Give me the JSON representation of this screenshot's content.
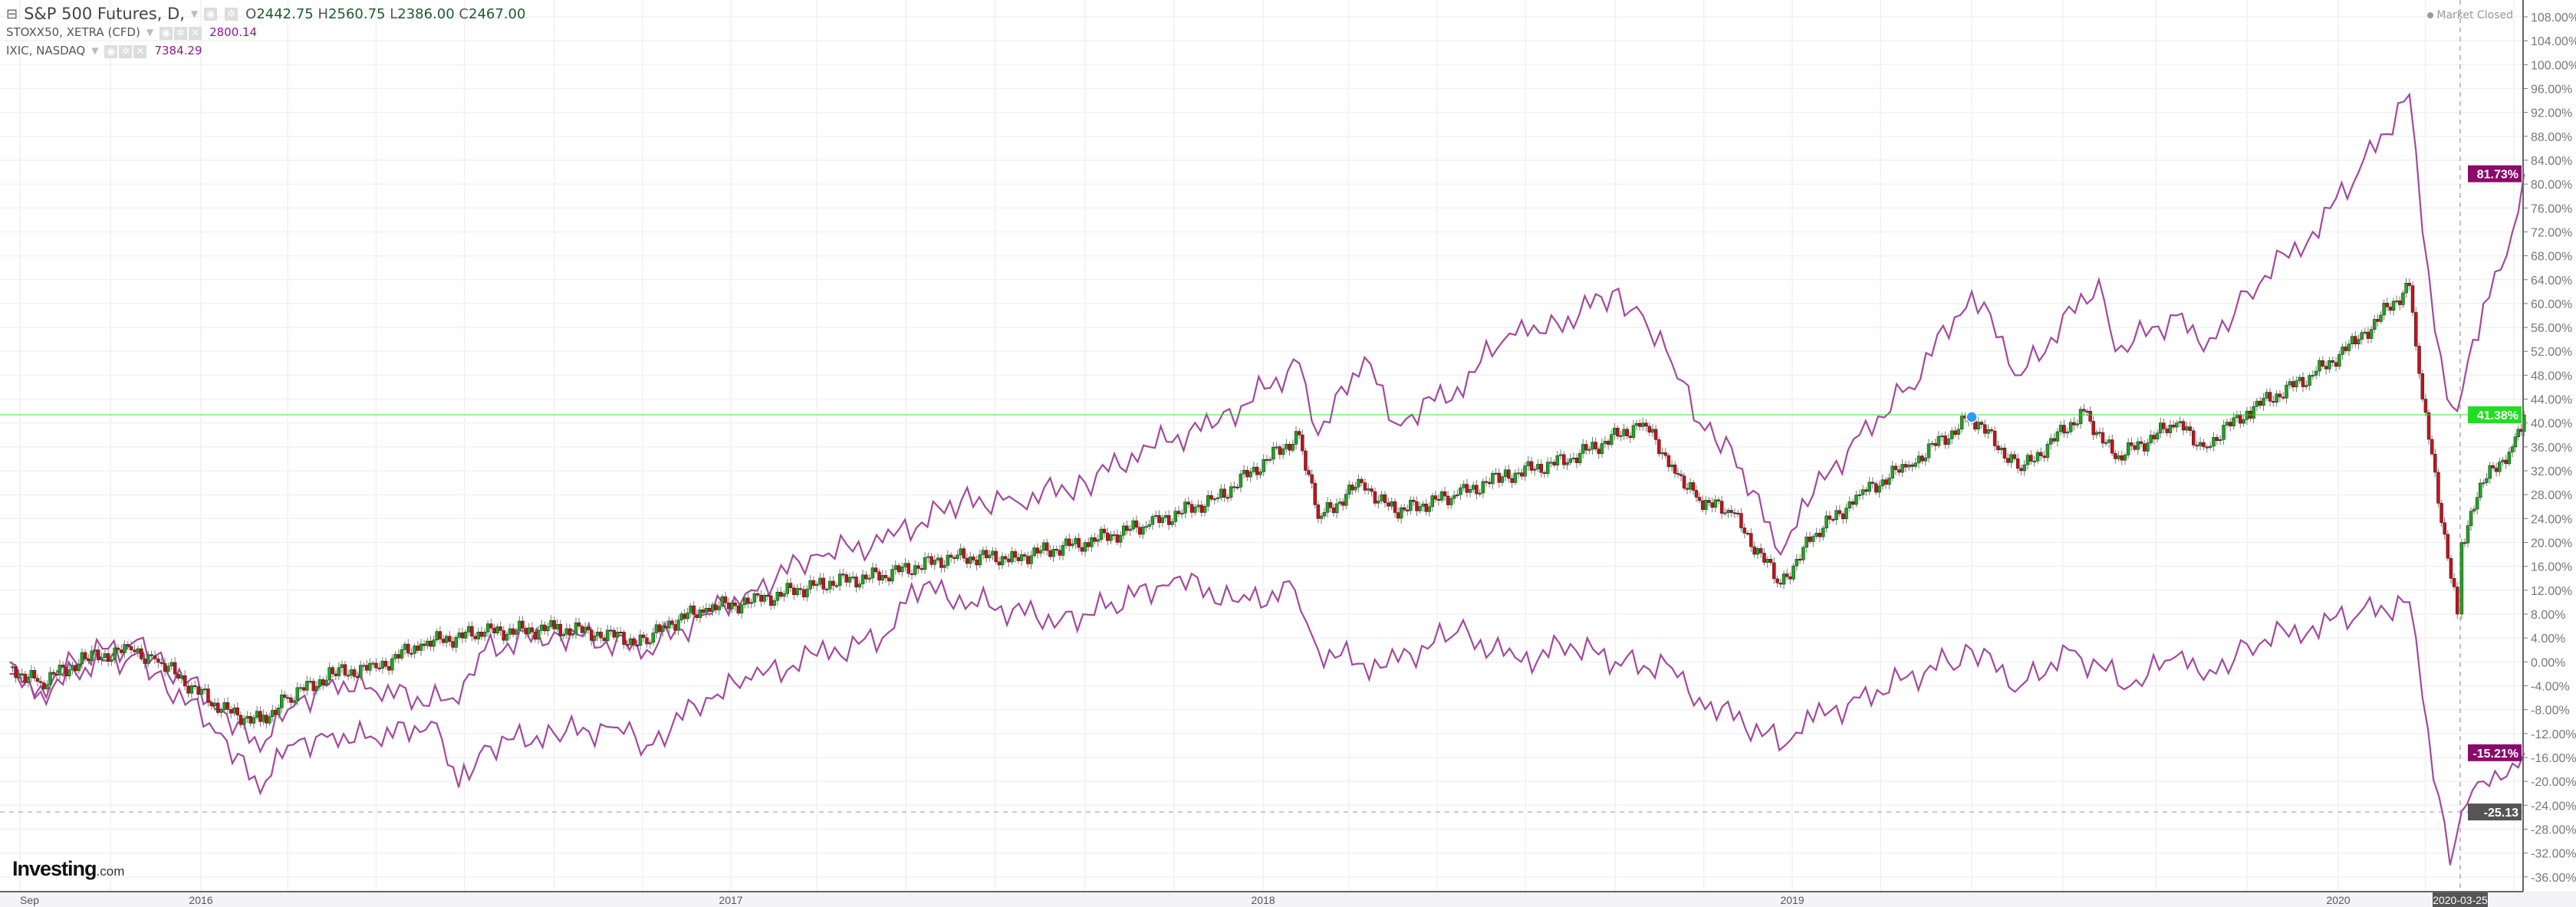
{
  "legend": {
    "main": {
      "title": "S&P 500 Futures, D,",
      "o_label": "O",
      "o": "2442.75",
      "h_label": "H",
      "h": "2560.75",
      "l_label": "L",
      "l": "2386.00",
      "c_label": "C",
      "c": "2467.00"
    },
    "series2": {
      "title": "STOXX50, XETRA (CFD)",
      "value": "2800.14"
    },
    "series3": {
      "title": "IXIC, NASDAQ",
      "value": "7384.29"
    }
  },
  "status": "Market Closed",
  "logo": {
    "brand": "Investing",
    "suffix": ".com"
  },
  "colors": {
    "up": "#1fa51f",
    "down": "#c8101a",
    "compare": "#a4489e",
    "last_sp": "#22dd22",
    "last_compare": "#8a0a6a",
    "crosshair_label": "#555555"
  },
  "chart_data": {
    "type": "line",
    "yunit": "%",
    "ylim": [
      -38,
      110
    ],
    "yticks": [
      108,
      104,
      100,
      96,
      92,
      88,
      84,
      80,
      76,
      72,
      68,
      64,
      60,
      56,
      52,
      48,
      44,
      40,
      36,
      32,
      28,
      24,
      20,
      16,
      12,
      8,
      4,
      0,
      -4,
      -8,
      -12,
      -16,
      -20,
      -24,
      -28,
      -32,
      -36
    ],
    "xtick_labels": [
      {
        "date": "2015-09-01",
        "label": "Sep"
      },
      {
        "date": "2016-01-01",
        "label": "2016"
      },
      {
        "date": "2017-01-01",
        "label": "2017"
      },
      {
        "date": "2018-01-01",
        "label": "2018"
      },
      {
        "date": "2019-01-01",
        "label": "2019"
      },
      {
        "date": "2020-01-01",
        "label": "2020"
      }
    ],
    "grid": true,
    "crosshair": {
      "date": "2020-03-25",
      "label": "2020-03-25",
      "value": -25.13,
      "value_label": "-25.13"
    },
    "series": [
      {
        "name": "S&P 500 Futures",
        "style": "candlestick",
        "last_label": "41.38%",
        "points": [
          [
            "2015-08-25",
            -1
          ],
          [
            "2015-09-15",
            -3.5
          ],
          [
            "2015-10-15",
            0.5
          ],
          [
            "2015-11-15",
            2
          ],
          [
            "2015-12-01",
            0.5
          ],
          [
            "2016-01-15",
            -8
          ],
          [
            "2016-02-11",
            -10
          ],
          [
            "2016-03-01",
            -6
          ],
          [
            "2016-04-01",
            -2
          ],
          [
            "2016-05-01",
            -1
          ],
          [
            "2016-06-01",
            3
          ],
          [
            "2016-07-15",
            5
          ],
          [
            "2016-09-01",
            5.5
          ],
          [
            "2016-10-01",
            5
          ],
          [
            "2016-11-04",
            3
          ],
          [
            "2016-11-15",
            6
          ],
          [
            "2016-12-15",
            9
          ],
          [
            "2017-01-15",
            10
          ],
          [
            "2017-03-01",
            13
          ],
          [
            "2017-04-15",
            14.5
          ],
          [
            "2017-06-01",
            17.5
          ],
          [
            "2017-07-15",
            17.5
          ],
          [
            "2017-09-01",
            20
          ],
          [
            "2017-10-15",
            23
          ],
          [
            "2017-12-01",
            27.5
          ],
          [
            "2018-01-26",
            38
          ],
          [
            "2018-02-08",
            24
          ],
          [
            "2018-03-10",
            30
          ],
          [
            "2018-04-02",
            25
          ],
          [
            "2018-05-15",
            28
          ],
          [
            "2018-06-15",
            31
          ],
          [
            "2018-08-01",
            34
          ],
          [
            "2018-09-20",
            40
          ],
          [
            "2018-10-10",
            33
          ],
          [
            "2018-10-29",
            27
          ],
          [
            "2018-11-20",
            25
          ],
          [
            "2018-12-24",
            13
          ],
          [
            "2019-01-15",
            21
          ],
          [
            "2019-02-15",
            28
          ],
          [
            "2019-03-20",
            33
          ],
          [
            "2019-05-01",
            41
          ],
          [
            "2019-06-03",
            32
          ],
          [
            "2019-07-15",
            42
          ],
          [
            "2019-08-05",
            34
          ],
          [
            "2019-09-15",
            40
          ],
          [
            "2019-10-03",
            36
          ],
          [
            "2019-11-01",
            42
          ],
          [
            "2019-12-15",
            48
          ],
          [
            "2020-01-15",
            54
          ],
          [
            "2020-02-19",
            63
          ],
          [
            "2020-02-28",
            44
          ],
          [
            "2020-03-23",
            8
          ],
          [
            "2020-03-26",
            20
          ],
          [
            "2020-04-10",
            30
          ],
          [
            "2020-04-30",
            36
          ],
          [
            "2020-05-08",
            41.38
          ]
        ]
      },
      {
        "name": "IXIC, NASDAQ",
        "style": "line",
        "last_label": "81.73%",
        "points": [
          [
            "2015-08-25",
            -2
          ],
          [
            "2015-09-15",
            -4
          ],
          [
            "2015-10-15",
            1
          ],
          [
            "2015-11-15",
            3
          ],
          [
            "2015-12-01",
            1
          ],
          [
            "2016-01-15",
            -8
          ],
          [
            "2016-02-11",
            -15
          ],
          [
            "2016-03-01",
            -8
          ],
          [
            "2016-04-01",
            -3
          ],
          [
            "2016-05-01",
            -5
          ],
          [
            "2016-06-27",
            -7
          ],
          [
            "2016-07-15",
            2
          ],
          [
            "2016-09-01",
            5
          ],
          [
            "2016-11-04",
            2
          ],
          [
            "2016-12-15",
            8
          ],
          [
            "2017-01-15",
            12
          ],
          [
            "2017-03-01",
            18
          ],
          [
            "2017-04-15",
            20
          ],
          [
            "2017-06-08",
            27
          ],
          [
            "2017-07-15",
            27
          ],
          [
            "2017-09-01",
            30
          ],
          [
            "2017-10-15",
            36
          ],
          [
            "2017-12-01",
            40
          ],
          [
            "2018-01-26",
            50
          ],
          [
            "2018-02-08",
            38
          ],
          [
            "2018-03-12",
            51
          ],
          [
            "2018-04-02",
            40
          ],
          [
            "2018-05-15",
            46
          ],
          [
            "2018-06-20",
            55
          ],
          [
            "2018-07-15",
            55
          ],
          [
            "2018-08-30",
            62
          ],
          [
            "2018-09-20",
            58
          ],
          [
            "2018-10-10",
            50
          ],
          [
            "2018-10-29",
            40
          ],
          [
            "2018-11-20",
            36
          ],
          [
            "2018-12-24",
            18
          ],
          [
            "2019-01-15",
            28
          ],
          [
            "2019-02-15",
            38
          ],
          [
            "2019-03-20",
            46
          ],
          [
            "2019-05-01",
            62
          ],
          [
            "2019-06-03",
            48
          ],
          [
            "2019-07-25",
            64
          ],
          [
            "2019-08-05",
            52
          ],
          [
            "2019-09-15",
            58
          ],
          [
            "2019-10-03",
            52
          ],
          [
            "2019-11-01",
            62
          ],
          [
            "2019-12-15",
            72
          ],
          [
            "2020-01-15",
            82
          ],
          [
            "2020-02-19",
            95
          ],
          [
            "2020-02-28",
            72
          ],
          [
            "2020-03-16",
            44
          ],
          [
            "2020-03-23",
            42
          ],
          [
            "2020-04-10",
            60
          ],
          [
            "2020-04-30",
            72
          ],
          [
            "2020-05-08",
            81.73
          ]
        ]
      },
      {
        "name": "STOXX50, XETRA (CFD)",
        "style": "line",
        "last_label": "-15.21%",
        "points": [
          [
            "2015-08-25",
            0
          ],
          [
            "2015-09-15",
            -5
          ],
          [
            "2015-10-15",
            -1
          ],
          [
            "2015-11-15",
            1
          ],
          [
            "2015-12-01",
            -2
          ],
          [
            "2016-01-15",
            -12
          ],
          [
            "2016-02-11",
            -22
          ],
          [
            "2016-03-01",
            -14
          ],
          [
            "2016-04-01",
            -12
          ],
          [
            "2016-05-01",
            -13
          ],
          [
            "2016-06-08",
            -10
          ],
          [
            "2016-06-27",
            -21
          ],
          [
            "2016-07-15",
            -14
          ],
          [
            "2016-09-01",
            -12
          ],
          [
            "2016-10-15",
            -11
          ],
          [
            "2016-11-04",
            -14
          ],
          [
            "2016-12-15",
            -6
          ],
          [
            "2017-01-15",
            -3
          ],
          [
            "2017-03-01",
            1
          ],
          [
            "2017-04-15",
            4
          ],
          [
            "2017-05-05",
            13
          ],
          [
            "2017-06-15",
            10
          ],
          [
            "2017-08-15",
            7
          ],
          [
            "2017-09-15",
            9
          ],
          [
            "2017-11-01",
            14
          ],
          [
            "2017-12-15",
            10
          ],
          [
            "2018-01-23",
            12
          ],
          [
            "2018-02-08",
            2
          ],
          [
            "2018-03-23",
            -1
          ],
          [
            "2018-05-15",
            5
          ],
          [
            "2018-06-28",
            0
          ],
          [
            "2018-08-01",
            3
          ],
          [
            "2018-09-01",
            0
          ],
          [
            "2018-10-10",
            -1
          ],
          [
            "2018-10-29",
            -6
          ],
          [
            "2018-12-27",
            -14
          ],
          [
            "2019-01-15",
            -10
          ],
          [
            "2019-02-15",
            -6
          ],
          [
            "2019-04-15",
            0
          ],
          [
            "2019-05-01",
            2
          ],
          [
            "2019-06-03",
            -4
          ],
          [
            "2019-07-05",
            2
          ],
          [
            "2019-08-15",
            -4
          ],
          [
            "2019-09-15",
            1
          ],
          [
            "2019-10-03",
            -3
          ],
          [
            "2019-11-01",
            3
          ],
          [
            "2019-12-15",
            6
          ],
          [
            "2020-01-15",
            8
          ],
          [
            "2020-02-19",
            10
          ],
          [
            "2020-02-28",
            -6
          ],
          [
            "2020-03-18",
            -34
          ],
          [
            "2020-03-26",
            -25
          ],
          [
            "2020-04-10",
            -20
          ],
          [
            "2020-04-30",
            -17
          ],
          [
            "2020-05-08",
            -15.21
          ]
        ]
      }
    ]
  }
}
